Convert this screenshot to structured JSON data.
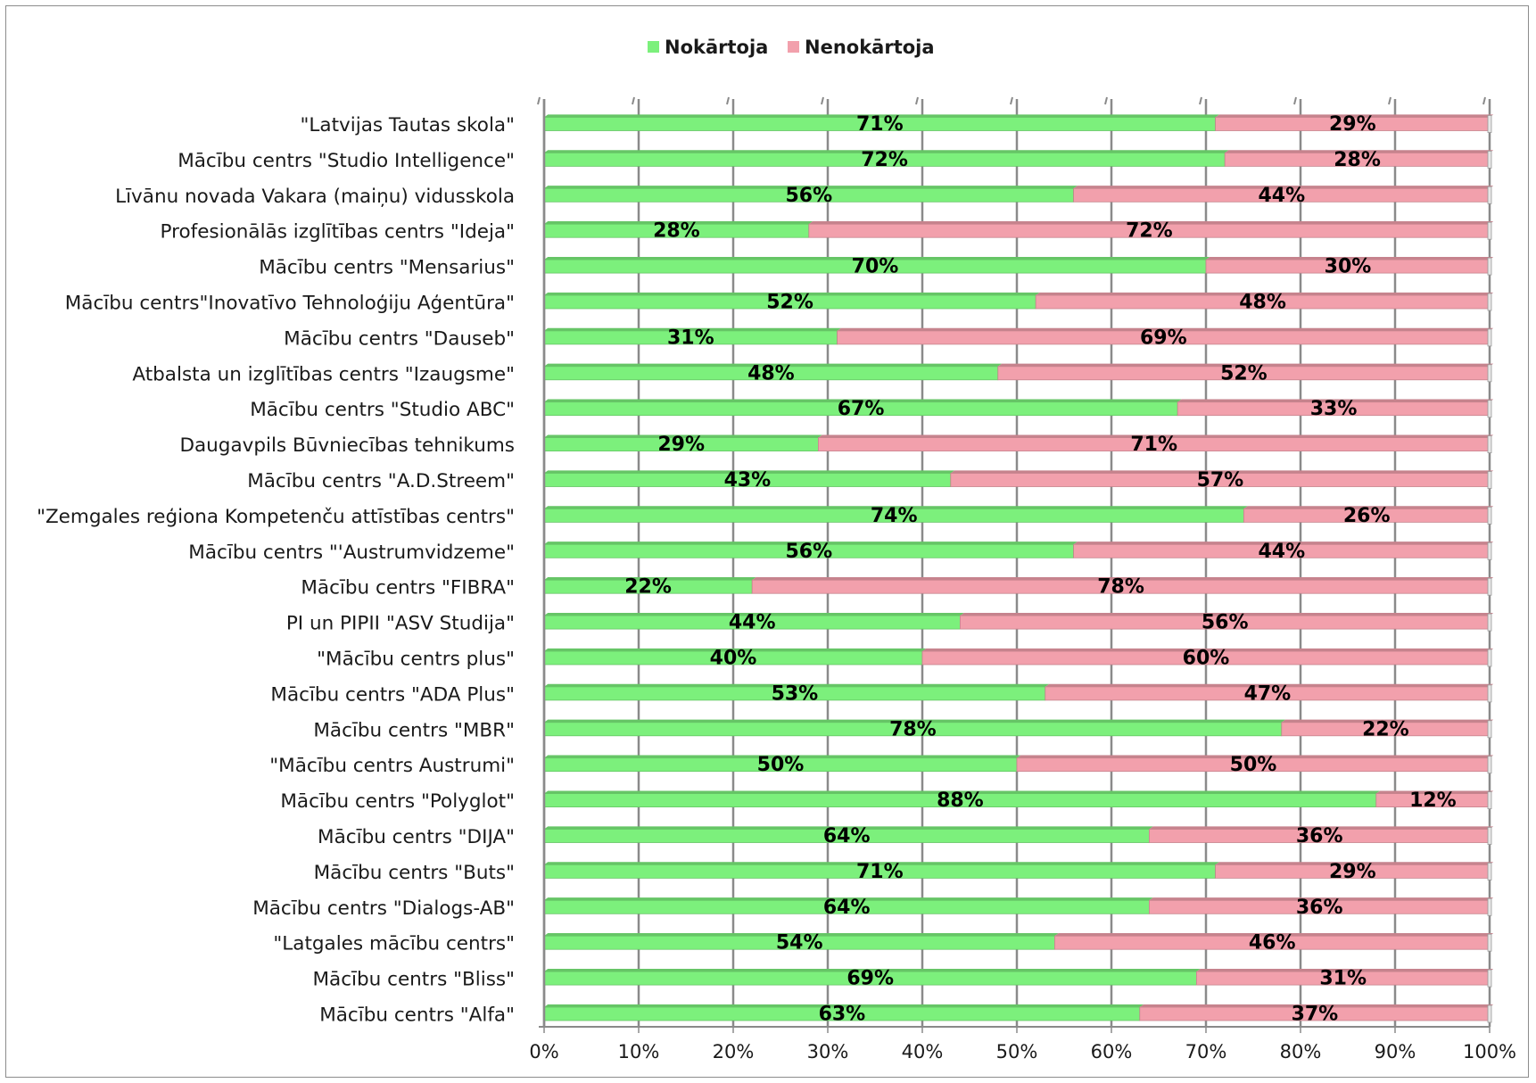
{
  "chart_data": {
    "type": "bar",
    "orientation": "horizontal",
    "stacking": "percent",
    "title": "",
    "xlabel": "",
    "ylabel": "",
    "xlim": [
      0,
      100
    ],
    "x_ticks": [
      "0%",
      "10%",
      "20%",
      "30%",
      "40%",
      "50%",
      "60%",
      "70%",
      "80%",
      "90%",
      "100%"
    ],
    "grid": true,
    "legend_position": "top",
    "categories": [
      "\"Latvijas Tautas skola\"",
      "Mācību centrs \"Studio Intelligence\"",
      "Līvānu novada Vakara (maiņu) vidusskola",
      "Profesionālās izglītības centrs \"Ideja\"",
      "Mācību centrs \"Mensarius\"",
      "Mācību centrs\"Inovatīvo Tehnoloģiju Aģentūra\"",
      "Mācību centrs \"Dauseb\"",
      "Atbalsta un izglītības centrs \"Izaugsme\"",
      "Mācību centrs \"Studio ABC\"",
      "Daugavpils Būvniecības tehnikums",
      "Mācību centrs \"A.D.Streem\"",
      "\"Zemgales reģiona Kompetenču attīstības centrs\"",
      "Mācību centrs \"'Austrumvidzeme\"",
      "Mācību centrs \"FIBRA\"",
      "PI un PIPII \"ASV Studija\"",
      "\"Mācību centrs plus\"",
      "Mācību centrs \"ADA Plus\"",
      "Mācību centrs  \"MBR\"",
      "\"Mācību centrs Austrumi\"",
      "Mācību centrs \"Polyglot\"",
      "Mācību centrs \"DIJA\"",
      "Mācību centrs \"Buts\"",
      "Mācību centrs \"Dialogs-AB\"",
      "\"Latgales mācību centrs\"",
      "Mācību centrs \"Bliss\"",
      "Mācību centrs \"Alfa\""
    ],
    "series": [
      {
        "name": "Nokārtoja",
        "color": "#7cf07c",
        "values": [
          71,
          72,
          56,
          28,
          70,
          52,
          31,
          48,
          67,
          29,
          43,
          74,
          56,
          22,
          44,
          40,
          53,
          78,
          50,
          88,
          64,
          71,
          64,
          54,
          69,
          63
        ],
        "labels": [
          "71%",
          "72%",
          "56%",
          "28%",
          "70%",
          "52%",
          "31%",
          "48%",
          "67%",
          "29%",
          "43%",
          "74%",
          "56%",
          "22%",
          "44%",
          "40%",
          "53%",
          "78%",
          "50%",
          "88%",
          "64%",
          "71%",
          "64%",
          "54%",
          "69%",
          "63%"
        ]
      },
      {
        "name": "Nenokārtoja",
        "color": "#f2a0ac",
        "values": [
          29,
          28,
          44,
          72,
          30,
          48,
          69,
          52,
          33,
          71,
          57,
          26,
          44,
          78,
          56,
          60,
          47,
          22,
          50,
          12,
          36,
          29,
          36,
          46,
          31,
          37
        ],
        "labels": [
          "29%",
          "28%",
          "44%",
          "72%",
          "30%",
          "48%",
          "69%",
          "52%",
          "33%",
          "71%",
          "57%",
          "26%",
          "44%",
          "78%",
          "56%",
          "60%",
          "47%",
          "22%",
          "50%",
          "12%",
          "36%",
          "29%",
          "36%",
          "46%",
          "31%",
          "37%"
        ]
      }
    ]
  }
}
